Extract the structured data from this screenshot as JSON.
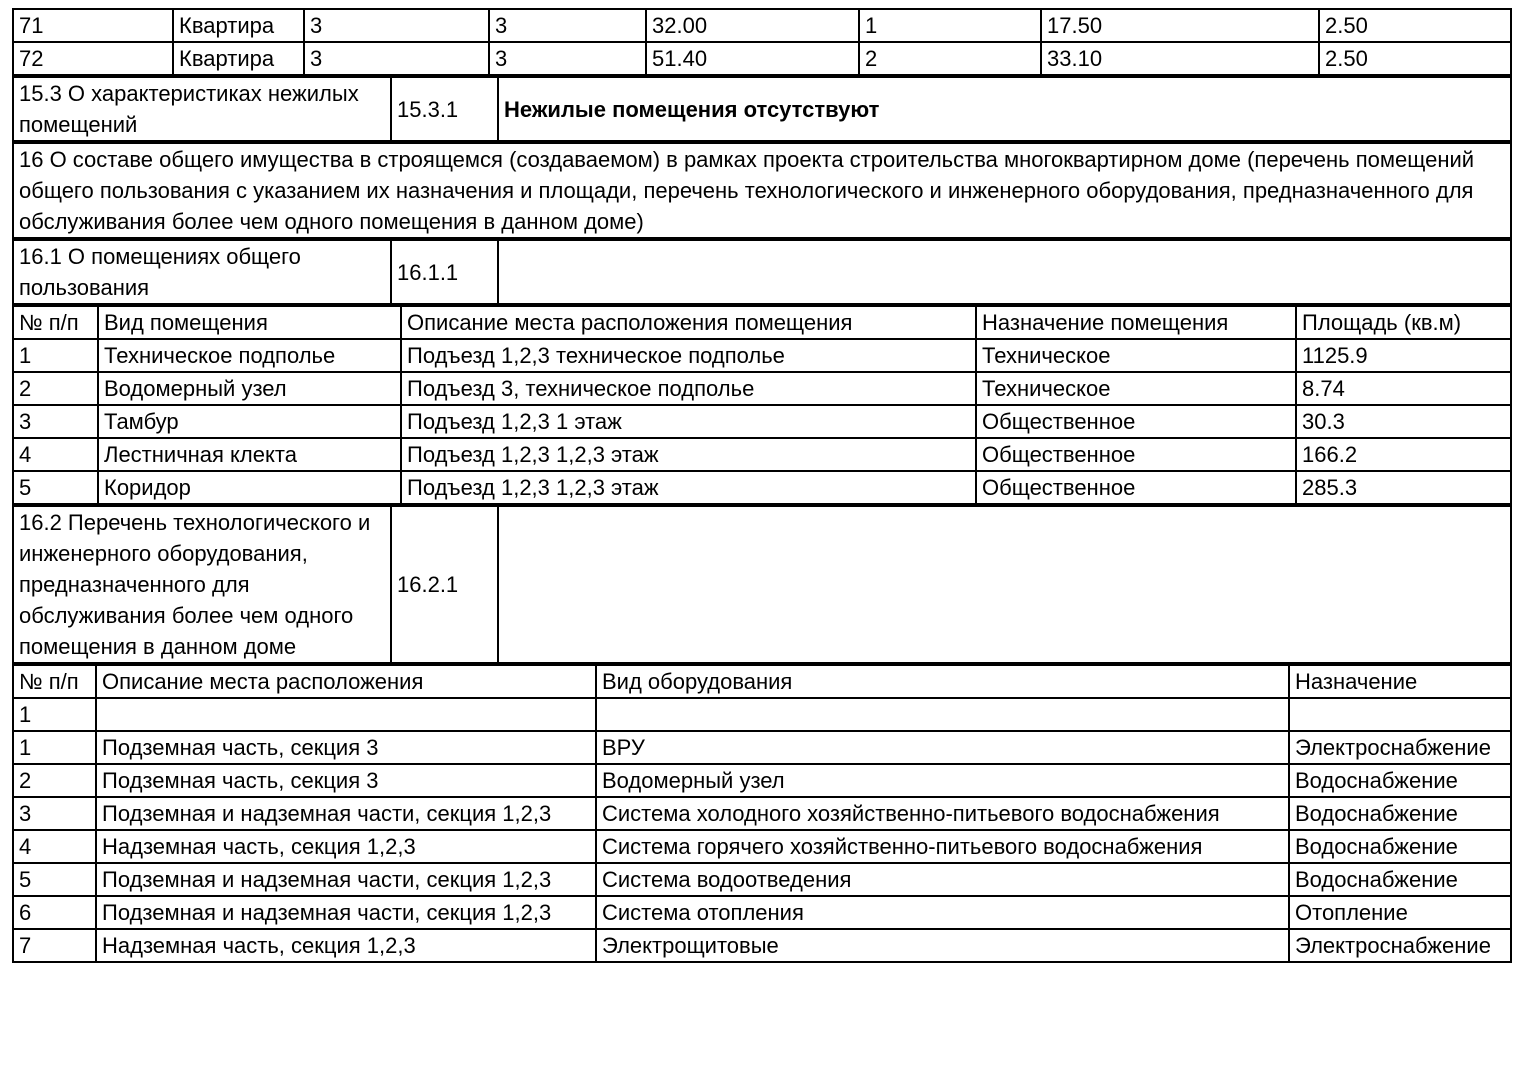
{
  "apartments_table": {
    "rows": [
      [
        "71",
        "Квартира",
        "3",
        "3",
        "32.00",
        "1",
        "17.50",
        "2.50"
      ],
      [
        "72",
        "Квартира",
        "3",
        "3",
        "51.40",
        "2",
        "33.10",
        "2.50"
      ]
    ]
  },
  "sections": {
    "s15_3": {
      "label": "15.3 О характеристиках нежилых помещений",
      "code": "15.3.1",
      "value": "Нежилые помещения отсутствуют"
    },
    "s16": {
      "text": "16 О составе общего имущества в строящемся (создаваемом) в рамках проекта строительства многоквартирном доме (перечень помещений общего пользования с указанием их назначения и площади, перечень технологического и инженерного оборудования, предназначенного для обслуживания более чем одного помещения в данном доме)"
    },
    "s16_1": {
      "label": "16.1 О помещениях общего пользования",
      "code": "16.1.1",
      "value": ""
    },
    "s16_2": {
      "label": "16.2 Перечень технологического и инженерного оборудования, предназначенного для обслуживания более чем одного помещения в данном доме",
      "code": "16.2.1",
      "value": ""
    }
  },
  "rooms_table": {
    "headers": [
      "№ п/п",
      "Вид помещения",
      "Описание места расположения помещения",
      "Назначение помещения",
      "Площадь (кв.м)"
    ],
    "rows": [
      [
        "1",
        "Техническое подполье",
        "Подъезд 1,2,3 техническое подполье",
        "Техническое",
        "1125.9"
      ],
      [
        "2",
        "Водомерный узел",
        "Подъезд 3, техническое подполье",
        "Техническое",
        "8.74"
      ],
      [
        "3",
        "Тамбур",
        "Подъезд 1,2,3 1 этаж",
        "Общественное",
        "30.3"
      ],
      [
        "4",
        "Лестничная клекта",
        "Подъезд 1,2,3 1,2,3 этаж",
        "Общественное",
        "166.2"
      ],
      [
        "5",
        "Коридор",
        "Подъезд 1,2,3 1,2,3 этаж",
        "Общественное",
        "285.3"
      ]
    ]
  },
  "equipment_table": {
    "headers": [
      "№ п/п",
      "Описание места расположения",
      "Вид оборудования",
      "Назначение"
    ],
    "rows": [
      [
        "1",
        "",
        "",
        ""
      ],
      [
        "1",
        "Подземная часть, секция 3",
        "ВРУ",
        "Электроснабжение"
      ],
      [
        "2",
        "Подземная часть, секция 3",
        "Водомерный узел",
        "Водоснабжение"
      ],
      [
        "3",
        "Подземная и надземная части, секция 1,2,3",
        "Система холодного хозяйственно-питьевого водоснабжения",
        "Водоснабжение"
      ],
      [
        "4",
        "Надземная часть, секция 1,2,3",
        "Система горячего хозяйственно-питьевого водоснабжения",
        "Водоснабжение"
      ],
      [
        "5",
        "Подземная и надземная части, секция 1,2,3",
        "Система водоотведения",
        "Водоснабжение"
      ],
      [
        "6",
        "Подземная и надземная части, секция 1,2,3",
        "Система отопления",
        "Отопление"
      ],
      [
        "7",
        "Надземная часть, секция 1,2,3",
        "Электрощитовые",
        "Электроснабжение"
      ]
    ]
  }
}
